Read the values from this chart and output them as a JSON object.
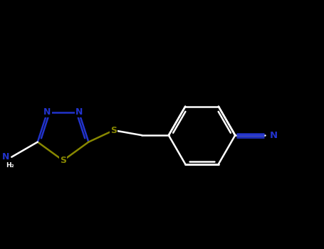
{
  "bg_color": "#000000",
  "bond_color": "#111111",
  "N_color": "#2233cc",
  "S_color": "#888800",
  "CN_color": "#2233cc",
  "lw": 1.8,
  "figsize": [
    4.55,
    3.5
  ],
  "dpi": 100,
  "xlim": [
    0.5,
    7.5
  ],
  "ylim": [
    1.8,
    5.5
  ]
}
